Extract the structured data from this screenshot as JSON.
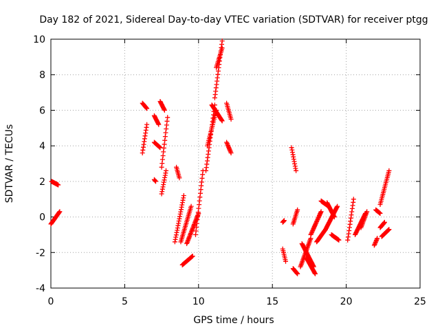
{
  "chart_data": {
    "type": "scatter",
    "title": "Day 182 of 2021, Sidereal Day-to-day VTEC variation (SDTVAR) for receiver ptgg",
    "xlabel": "GPS time / hours",
    "ylabel": "SDTVAR / TECUs",
    "xlim": [
      0,
      25
    ],
    "ylim": [
      -4,
      10
    ],
    "xticks": [
      0,
      5,
      10,
      15,
      20,
      25
    ],
    "yticks": [
      -4,
      -2,
      0,
      2,
      4,
      6,
      8,
      10
    ],
    "grid": true,
    "marker": "+",
    "color": "#ff0000",
    "segments": [
      {
        "x": [
          0.05,
          0.5
        ],
        "y": [
          2.0,
          1.8
        ]
      },
      {
        "x": [
          0.0,
          0.6
        ],
        "y": [
          -0.4,
          0.3
        ]
      },
      {
        "x": [
          6.2,
          6.5
        ],
        "y": [
          6.4,
          6.1
        ]
      },
      {
        "x": [
          6.2,
          6.5
        ],
        "y": [
          3.6,
          5.2
        ]
      },
      {
        "x": [
          7.0,
          7.3
        ],
        "y": [
          5.7,
          5.2
        ]
      },
      {
        "x": [
          7.0,
          7.4
        ],
        "y": [
          4.2,
          3.9
        ]
      },
      {
        "x": [
          7.0,
          7.1
        ],
        "y": [
          2.1,
          2.0
        ]
      },
      {
        "x": [
          7.4,
          7.7
        ],
        "y": [
          6.5,
          6.0
        ]
      },
      {
        "x": [
          7.5,
          7.9
        ],
        "y": [
          2.8,
          5.6
        ]
      },
      {
        "x": [
          7.5,
          7.8
        ],
        "y": [
          1.3,
          2.6
        ]
      },
      {
        "x": [
          8.4,
          9.0
        ],
        "y": [
          -1.4,
          1.2
        ]
      },
      {
        "x": [
          8.5,
          8.7
        ],
        "y": [
          2.8,
          2.2
        ]
      },
      {
        "x": [
          8.8,
          9.5
        ],
        "y": [
          -1.4,
          0.6
        ]
      },
      {
        "x": [
          8.9,
          9.6
        ],
        "y": [
          -2.7,
          -2.2
        ]
      },
      {
        "x": [
          9.2,
          10.0
        ],
        "y": [
          -1.5,
          0.2
        ]
      },
      {
        "x": [
          9.8,
          10.3
        ],
        "y": [
          -1.0,
          2.6
        ]
      },
      {
        "x": [
          10.5,
          11.1
        ],
        "y": [
          2.6,
          6.3
        ]
      },
      {
        "x": [
          10.6,
          11.2
        ],
        "y": [
          4.0,
          6.0
        ]
      },
      {
        "x": [
          10.9,
          11.6
        ],
        "y": [
          6.3,
          5.4
        ]
      },
      {
        "x": [
          11.1,
          11.6
        ],
        "y": [
          6.7,
          9.9
        ]
      },
      {
        "x": [
          11.2,
          11.6
        ],
        "y": [
          8.4,
          9.5
        ]
      },
      {
        "x": [
          11.9,
          12.2
        ],
        "y": [
          6.4,
          5.5
        ]
      },
      {
        "x": [
          11.9,
          12.2
        ],
        "y": [
          4.2,
          3.6
        ]
      },
      {
        "x": [
          15.7,
          15.9
        ],
        "y": [
          -1.8,
          -2.5
        ]
      },
      {
        "x": [
          15.7,
          15.8
        ],
        "y": [
          -0.3,
          -0.2
        ]
      },
      {
        "x": [
          16.3,
          16.6
        ],
        "y": [
          3.9,
          2.6
        ]
      },
      {
        "x": [
          16.4,
          16.7
        ],
        "y": [
          -0.4,
          0.4
        ]
      },
      {
        "x": [
          16.4,
          16.7
        ],
        "y": [
          -2.9,
          -3.2
        ]
      },
      {
        "x": [
          16.9,
          17.6
        ],
        "y": [
          -2.8,
          -1.2
        ]
      },
      {
        "x": [
          17.0,
          17.8
        ],
        "y": [
          -1.5,
          -2.8
        ]
      },
      {
        "x": [
          17.3,
          17.9
        ],
        "y": [
          -2.3,
          -3.2
        ]
      },
      {
        "x": [
          17.6,
          18.3
        ],
        "y": [
          -1.0,
          0.3
        ]
      },
      {
        "x": [
          18.0,
          18.6
        ],
        "y": [
          -1.4,
          -0.7
        ]
      },
      {
        "x": [
          18.3,
          18.8
        ],
        "y": [
          0.9,
          0.6
        ]
      },
      {
        "x": [
          18.7,
          19.2
        ],
        "y": [
          0.8,
          0.0
        ]
      },
      {
        "x": [
          18.6,
          19.4
        ],
        "y": [
          -0.7,
          0.6
        ]
      },
      {
        "x": [
          19.0,
          19.5
        ],
        "y": [
          -1.0,
          -1.3
        ]
      },
      {
        "x": [
          20.1,
          20.5
        ],
        "y": [
          -1.3,
          1.0
        ]
      },
      {
        "x": [
          20.6,
          21.3
        ],
        "y": [
          -1.0,
          0.2
        ]
      },
      {
        "x": [
          21.0,
          21.4
        ],
        "y": [
          -0.6,
          0.3
        ]
      },
      {
        "x": [
          21.9,
          22.1
        ],
        "y": [
          -1.6,
          -1.2
        ]
      },
      {
        "x": [
          22.0,
          22.3
        ],
        "y": [
          0.4,
          0.2
        ]
      },
      {
        "x": [
          22.3,
          22.9
        ],
        "y": [
          0.7,
          2.6
        ]
      },
      {
        "x": [
          22.3,
          22.6
        ],
        "y": [
          -0.6,
          -0.3
        ]
      },
      {
        "x": [
          22.4,
          22.9
        ],
        "y": [
          -1.1,
          -0.7
        ]
      }
    ]
  }
}
